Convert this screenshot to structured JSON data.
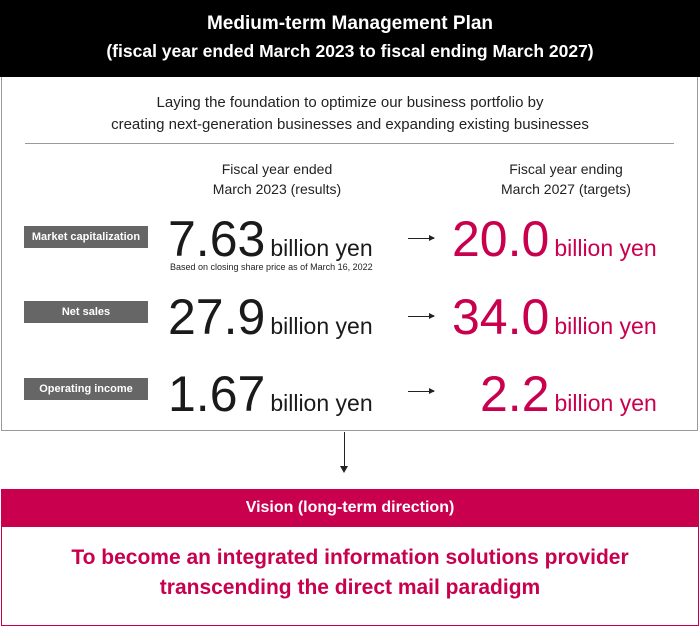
{
  "header": {
    "title": "Medium-term Management Plan",
    "subtitle": "(fiscal year ended March 2023 to fiscal ending March 2027)"
  },
  "intro": {
    "line1": "Laying the foundation to optimize our business portfolio by",
    "line2": "creating next-generation businesses and expanding existing businesses"
  },
  "columns": {
    "results": {
      "line1": "Fiscal year ended",
      "line2": "March 2023 (results)"
    },
    "targets": {
      "line1": "Fiscal year ending",
      "line2": "March 2027 (targets)"
    }
  },
  "metrics": [
    {
      "label": "Market capitalization",
      "result": "7.63",
      "target": "20.0",
      "unit": "billion yen",
      "note": "Based on closing share price as of March 16, 2022"
    },
    {
      "label": "Net sales",
      "result": "27.9",
      "target": "34.0",
      "unit": "billion yen"
    },
    {
      "label": "Operating income",
      "result": "1.67",
      "target": "2.2",
      "unit": "billion yen"
    }
  ],
  "vision": {
    "heading": "Vision (long-term direction)",
    "line1": "To become an integrated information solutions provider",
    "line2": "transcending the direct mail paradigm"
  },
  "colors": {
    "accent": "#c8004d",
    "header_bg": "#000000",
    "label_bg": "#666666"
  }
}
